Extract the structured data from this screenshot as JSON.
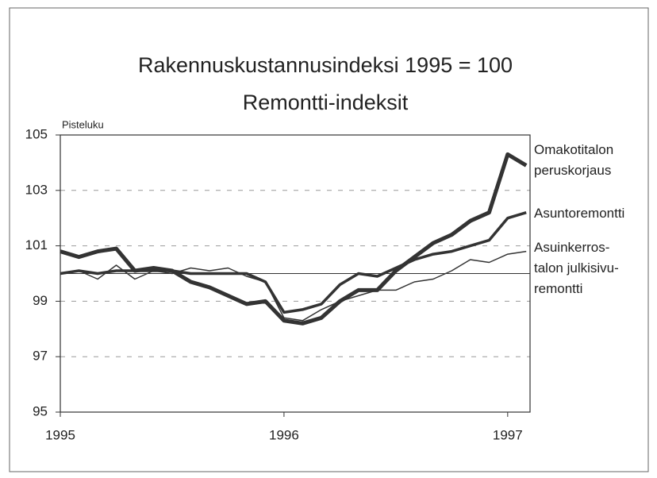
{
  "chart_data": {
    "type": "line",
    "title": "Rakennuskustannusindeksi 1995 = 100",
    "subtitle": "Remontti-indeksit",
    "y_label": "Pisteluku",
    "x": [
      1995,
      1995.083,
      1995.167,
      1995.25,
      1995.333,
      1995.417,
      1995.5,
      1995.583,
      1995.667,
      1995.75,
      1995.833,
      1995.917,
      1996,
      1996.083,
      1996.167,
      1996.25,
      1996.333,
      1996.417,
      1996.5,
      1996.583,
      1996.667,
      1996.75,
      1996.833,
      1996.917,
      1997,
      1997.083
    ],
    "xlim": [
      1995,
      1997.1
    ],
    "xticks": [
      1995,
      1996,
      1997
    ],
    "ylim": [
      95,
      105
    ],
    "yticks": [
      95,
      97,
      99,
      101,
      103,
      105
    ],
    "reference_line": 100,
    "grid": true,
    "series": [
      {
        "name": "Omakotitalon\nperuskorjaus",
        "color": "#333333",
        "line_width": 5,
        "values": [
          100.8,
          100.6,
          100.8,
          100.9,
          100.1,
          100.2,
          100.1,
          99.7,
          99.5,
          99.2,
          98.9,
          99.0,
          98.3,
          98.2,
          98.4,
          99.0,
          99.4,
          99.4,
          100.1,
          100.6,
          101.1,
          101.4,
          101.9,
          102.2,
          104.3,
          103.9
        ]
      },
      {
        "name": "Asuntoremontti",
        "color": "#333333",
        "line_width": 3.5,
        "values": [
          100.0,
          100.1,
          100.0,
          100.1,
          100.1,
          100.1,
          100.1,
          100.0,
          100.0,
          100.0,
          100.0,
          99.7,
          98.6,
          98.7,
          98.9,
          99.6,
          100.0,
          99.9,
          100.2,
          100.5,
          100.7,
          100.8,
          101.0,
          101.2,
          102.0,
          102.2
        ]
      },
      {
        "name": "Asuinkerros-\ntalon julkisivu-\nremontti",
        "color": "#333333",
        "line_width": 1.5,
        "values": [
          100.0,
          100.1,
          99.8,
          100.3,
          99.8,
          100.1,
          100.0,
          100.2,
          100.1,
          100.2,
          99.9,
          99.7,
          98.4,
          98.3,
          98.7,
          99.0,
          99.2,
          99.4,
          99.4,
          99.7,
          99.8,
          100.1,
          100.5,
          100.4,
          100.7,
          100.8
        ]
      }
    ]
  }
}
